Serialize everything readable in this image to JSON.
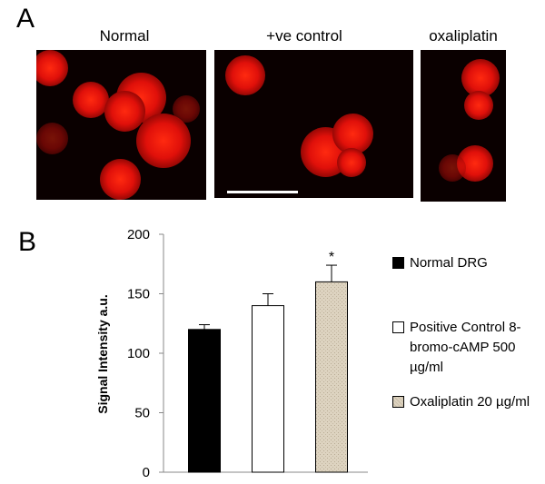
{
  "panel_a": {
    "label": "A",
    "images": [
      "Normal",
      "+ve control",
      "oxaliplatin"
    ]
  },
  "panel_b": {
    "label": "B"
  },
  "chart_data": {
    "type": "bar",
    "y_label": "Signal Intensity a.u.",
    "categories": [
      null,
      null,
      null
    ],
    "values": [
      120,
      140,
      160
    ],
    "errors": [
      4,
      10,
      14
    ],
    "colors": [
      "#000000",
      "#ffffff",
      "#ddd3c0"
    ],
    "legend": [
      "Normal DRG",
      "Positive Control 8-bromo-cAMP 500 µg/ml",
      "Oxaliplatin 20 µg/ml"
    ],
    "annotation": "*",
    "ylim": [
      0,
      200
    ],
    "yticks": [
      0,
      50,
      100,
      150,
      200
    ],
    "grid": false
  }
}
